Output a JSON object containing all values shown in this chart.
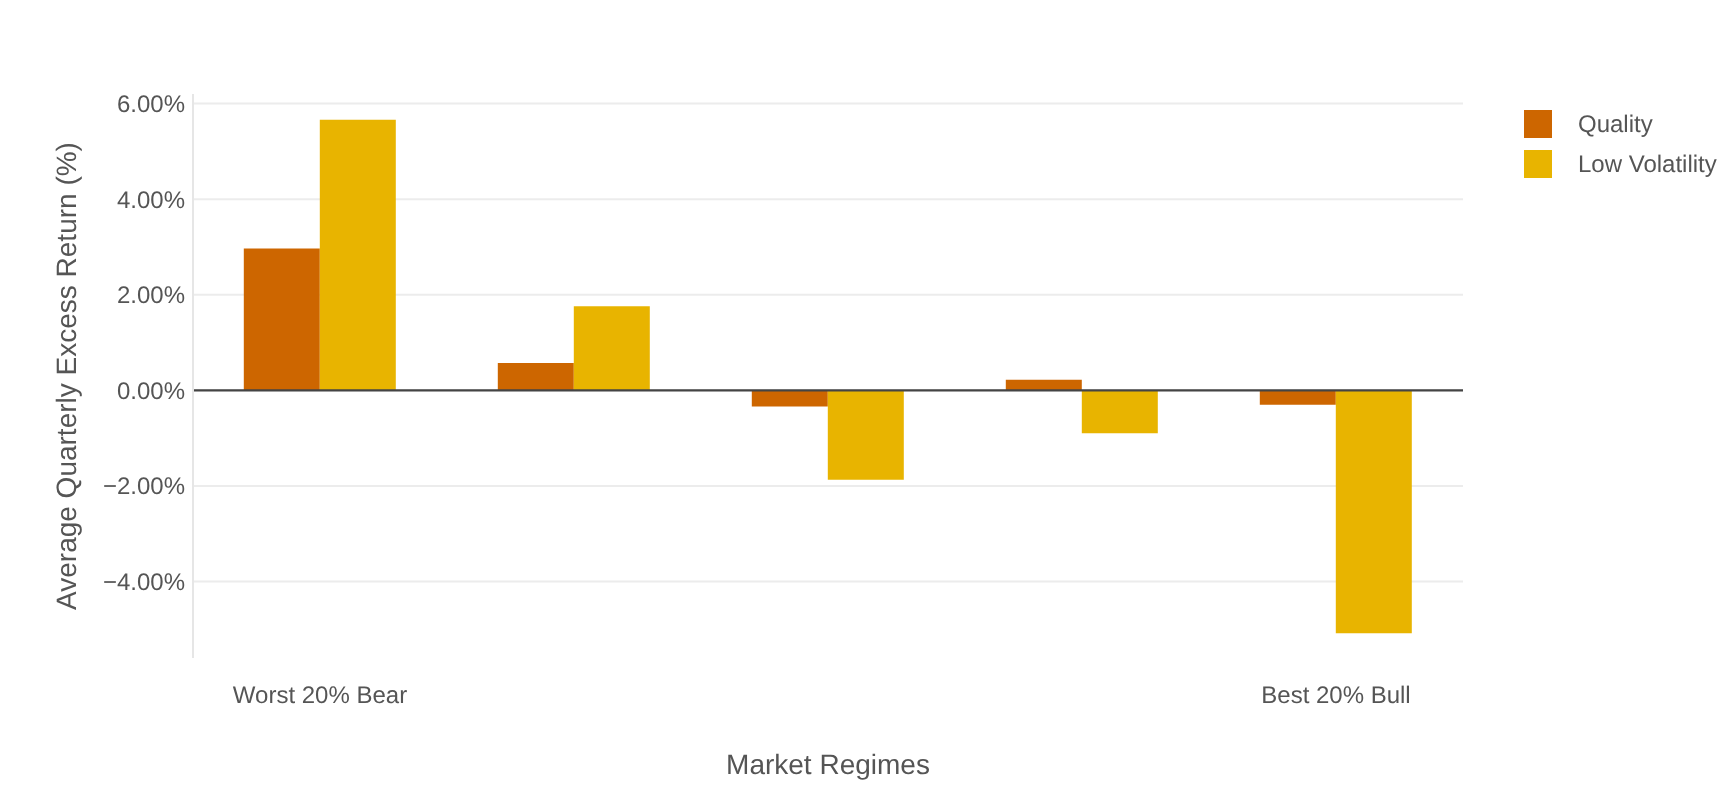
{
  "chart_data": {
    "type": "bar",
    "xlabel": "Market Regimes",
    "ylabel": "Average Quarterly Excess Return (%)",
    "categories": [
      "Worst 20% Bear",
      null,
      null,
      null,
      "Best 20% Bull"
    ],
    "series": [
      {
        "name": "Quality",
        "color": "#cd6600",
        "values": [
          2.97,
          0.57,
          -0.34,
          0.22,
          -0.3
        ]
      },
      {
        "name": "Low Volatility",
        "color": "#e8b400",
        "values": [
          5.66,
          1.76,
          -1.87,
          -0.9,
          -5.08
        ]
      }
    ],
    "ylim": [
      -5.6,
      6.2
    ],
    "yticks": [
      {
        "value": -4,
        "label": "−4.00%"
      },
      {
        "value": -2,
        "label": "−2.00%"
      },
      {
        "value": 0,
        "label": "0.00%"
      },
      {
        "value": 2,
        "label": "2.00%"
      },
      {
        "value": 4,
        "label": "4.00%"
      },
      {
        "value": 6,
        "label": "6.00%"
      }
    ],
    "ref_lines": [
      {
        "axis": "y",
        "value": 0,
        "color": "#444444"
      }
    ],
    "grid": "y",
    "legend": "top right"
  }
}
